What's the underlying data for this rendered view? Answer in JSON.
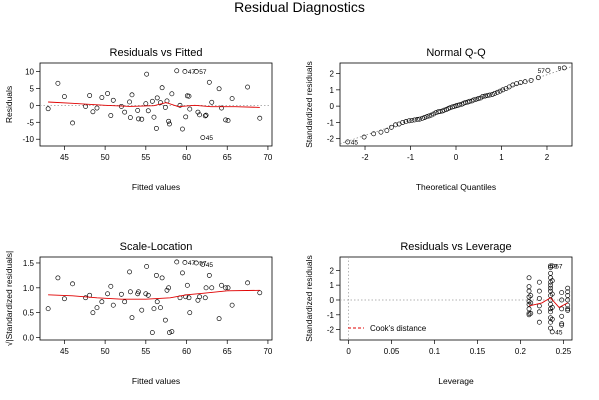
{
  "figure": {
    "title": "Residual Diagnostics"
  },
  "chart_data": [
    {
      "id": "rvf",
      "type": "scatter",
      "title": "Residuals vs Fitted",
      "xlabel": "Fitted values",
      "ylabel": "Residuals",
      "xlim": [
        42,
        70.5
      ],
      "ylim": [
        -12,
        12.5
      ],
      "xticks": [
        45,
        50,
        55,
        60,
        65,
        70
      ],
      "yticks": [
        -10,
        -5,
        0,
        5,
        10
      ],
      "ref_line": {
        "y": 0,
        "style": "dotted"
      },
      "smooth": [
        [
          43,
          1.0
        ],
        [
          46,
          0.6
        ],
        [
          50,
          0.0
        ],
        [
          53,
          -0.3
        ],
        [
          56,
          -0.1
        ],
        [
          57.5,
          0.8
        ],
        [
          59,
          -0.4
        ],
        [
          61,
          0.0
        ],
        [
          63,
          -0.4
        ],
        [
          66,
          -0.4
        ],
        [
          69,
          -0.6
        ]
      ],
      "points": [
        [
          43,
          -1
        ],
        [
          44.2,
          6.5
        ],
        [
          45,
          2.6
        ],
        [
          46,
          -5.2
        ],
        [
          47.6,
          -0.3
        ],
        [
          48.1,
          2.9
        ],
        [
          48.5,
          -1.9
        ],
        [
          49,
          -0.8
        ],
        [
          49.6,
          2.3
        ],
        [
          50.3,
          3.5
        ],
        [
          50.7,
          -3
        ],
        [
          51,
          1.5
        ],
        [
          52,
          -0.3
        ],
        [
          52.4,
          -2
        ],
        [
          53,
          1
        ],
        [
          53.1,
          -3.6
        ],
        [
          53.3,
          3.1
        ],
        [
          54,
          -1.5
        ],
        [
          54.1,
          -4
        ],
        [
          54.5,
          -4.1
        ],
        [
          55,
          0.5
        ],
        [
          55.1,
          9.2
        ],
        [
          55.3,
          -1.6
        ],
        [
          55.8,
          1.2
        ],
        [
          56,
          -3.5
        ],
        [
          56.3,
          -6.8
        ],
        [
          56.4,
          2.2
        ],
        [
          56.8,
          0.8
        ],
        [
          57,
          5.2
        ],
        [
          57.4,
          -0.6
        ],
        [
          57.6,
          1.3
        ],
        [
          57.8,
          -4.7
        ],
        [
          57.9,
          -5.5
        ],
        [
          58.2,
          3.4
        ],
        [
          58.8,
          10.2
        ],
        [
          59.2,
          0
        ],
        [
          59.5,
          -7
        ],
        [
          59.8,
          10
        ],
        [
          59.9,
          -3.4
        ],
        [
          60.1,
          2.8
        ],
        [
          60.3,
          2.7
        ],
        [
          60.4,
          -1.1
        ],
        [
          61.2,
          10
        ],
        [
          61.4,
          -2
        ],
        [
          61.6,
          -2.8
        ],
        [
          62,
          -9.5
        ],
        [
          62.3,
          -3.1
        ],
        [
          62.4,
          -2.9
        ],
        [
          62.8,
          6.8
        ],
        [
          63.1,
          0.9
        ],
        [
          64,
          4.9
        ],
        [
          64.3,
          -0.8
        ],
        [
          64.8,
          -4.3
        ],
        [
          65.1,
          -4.5
        ],
        [
          65.6,
          2
        ],
        [
          67.5,
          5.4
        ],
        [
          69,
          -3.8
        ]
      ],
      "labels": [
        {
          "text": "47",
          "x": 59.8,
          "y": 10
        },
        {
          "text": "57",
          "x": 61.2,
          "y": 10
        },
        {
          "text": "45",
          "x": 62,
          "y": -9.5
        }
      ]
    },
    {
      "id": "qq",
      "type": "scatter",
      "title": "Normal Q-Q",
      "xlabel": "Theoretical Quantiles",
      "ylabel": "Standardized residuals",
      "xlim": [
        -2.55,
        2.55
      ],
      "ylim": [
        -2.45,
        2.65
      ],
      "xticks": [
        -2,
        -1,
        0,
        1,
        2
      ],
      "yticks": [
        -2,
        -1,
        0,
        1,
        2
      ],
      "ref_line": {
        "from": [
          -2.55,
          -2.31
        ],
        "to": [
          2.55,
          2.44
        ],
        "style": "dotted"
      },
      "points": [
        [
          -2.38,
          -2.2
        ],
        [
          -2.02,
          -1.9
        ],
        [
          -1.81,
          -1.7
        ],
        [
          -1.65,
          -1.6
        ],
        [
          -1.52,
          -1.5
        ],
        [
          -1.42,
          -1.3
        ],
        [
          -1.33,
          -1.15
        ],
        [
          -1.25,
          -1.1
        ],
        [
          -1.17,
          -1.0
        ],
        [
          -1.1,
          -0.95
        ],
        [
          -1.03,
          -0.9
        ],
        [
          -0.97,
          -0.88
        ],
        [
          -0.91,
          -0.85
        ],
        [
          -0.85,
          -0.82
        ],
        [
          -0.8,
          -0.8
        ],
        [
          -0.74,
          -0.75
        ],
        [
          -0.69,
          -0.7
        ],
        [
          -0.64,
          -0.65
        ],
        [
          -0.59,
          -0.6
        ],
        [
          -0.54,
          -0.55
        ],
        [
          -0.49,
          -0.48
        ],
        [
          -0.44,
          -0.4
        ],
        [
          -0.39,
          -0.35
        ],
        [
          -0.35,
          -0.33
        ],
        [
          -0.3,
          -0.3
        ],
        [
          -0.26,
          -0.25
        ],
        [
          -0.21,
          -0.2
        ],
        [
          -0.17,
          -0.15
        ],
        [
          -0.13,
          -0.1
        ],
        [
          -0.08,
          -0.05
        ],
        [
          -0.04,
          -0.02
        ],
        [
          0,
          0.02
        ],
        [
          0.04,
          0.05
        ],
        [
          0.08,
          0.08
        ],
        [
          0.13,
          0.12
        ],
        [
          0.17,
          0.18
        ],
        [
          0.21,
          0.22
        ],
        [
          0.26,
          0.25
        ],
        [
          0.3,
          0.3
        ],
        [
          0.35,
          0.32
        ],
        [
          0.39,
          0.38
        ],
        [
          0.44,
          0.42
        ],
        [
          0.49,
          0.46
        ],
        [
          0.54,
          0.5
        ],
        [
          0.59,
          0.6
        ],
        [
          0.64,
          0.62
        ],
        [
          0.69,
          0.65
        ],
        [
          0.74,
          0.68
        ],
        [
          0.8,
          0.72
        ],
        [
          0.85,
          0.78
        ],
        [
          0.91,
          0.85
        ],
        [
          0.97,
          0.92
        ],
        [
          1.03,
          1.0
        ],
        [
          1.1,
          1.08
        ],
        [
          1.17,
          1.18
        ],
        [
          1.25,
          1.3
        ],
        [
          1.33,
          1.38
        ],
        [
          1.42,
          1.45
        ],
        [
          1.52,
          1.5
        ],
        [
          1.65,
          1.58
        ],
        [
          1.81,
          1.75
        ],
        [
          2.02,
          2.2
        ],
        [
          2.38,
          2.35
        ]
      ],
      "labels": [
        {
          "text": "45",
          "x": -2.38,
          "y": -2.2,
          "side": "right"
        },
        {
          "text": "57",
          "x": 2.02,
          "y": 2.2,
          "side": "left"
        },
        {
          "text": "9",
          "x": 2.38,
          "y": 2.35,
          "side": "left"
        }
      ]
    },
    {
      "id": "sl",
      "type": "scatter",
      "title": "Scale-Location",
      "xlabel": "Fitted values",
      "ylabel": "√|Standardized residuals|",
      "xlim": [
        42,
        70.5
      ],
      "ylim": [
        -0.05,
        1.62
      ],
      "xticks": [
        45,
        50,
        55,
        60,
        65,
        70
      ],
      "yticks": [
        0.0,
        0.5,
        1.0,
        1.5
      ],
      "smooth": [
        [
          43,
          0.86
        ],
        [
          46,
          0.84
        ],
        [
          49,
          0.8
        ],
        [
          52,
          0.77
        ],
        [
          55,
          0.77
        ],
        [
          58,
          0.8
        ],
        [
          60,
          0.86
        ],
        [
          62,
          0.89
        ],
        [
          65,
          0.94
        ],
        [
          69,
          0.95
        ]
      ],
      "points": [
        [
          43,
          0.58
        ],
        [
          44.2,
          1.2
        ],
        [
          45,
          0.78
        ],
        [
          46,
          1.08
        ],
        [
          47.6,
          0.8
        ],
        [
          48.1,
          0.85
        ],
        [
          48.5,
          0.5
        ],
        [
          49,
          0.6
        ],
        [
          49.6,
          0.72
        ],
        [
          50.3,
          0.88
        ],
        [
          50.7,
          1.03
        ],
        [
          51,
          0.65
        ],
        [
          52,
          0.87
        ],
        [
          52.4,
          0.72
        ],
        [
          53,
          1.32
        ],
        [
          53.1,
          0.92
        ],
        [
          53.3,
          0.4
        ],
        [
          54,
          0.88
        ],
        [
          54.1,
          0.92
        ],
        [
          54.5,
          0.55
        ],
        [
          55,
          0.88
        ],
        [
          55.1,
          1.43
        ],
        [
          55.3,
          0.85
        ],
        [
          55.8,
          0.1
        ],
        [
          56,
          0.58
        ],
        [
          56.3,
          1.25
        ],
        [
          56.4,
          0.72
        ],
        [
          56.8,
          0.6
        ],
        [
          57,
          1.2
        ],
        [
          57.4,
          0.35
        ],
        [
          57.6,
          0.95
        ],
        [
          57.8,
          1.0
        ],
        [
          57.9,
          0.1
        ],
        [
          58.2,
          0.12
        ],
        [
          58.8,
          1.52
        ],
        [
          59.2,
          0.8
        ],
        [
          59.5,
          1.3
        ],
        [
          59.8,
          1.51
        ],
        [
          59.9,
          0.82
        ],
        [
          60.1,
          1.05
        ],
        [
          60.3,
          0.8
        ],
        [
          60.4,
          0.5
        ],
        [
          61.2,
          1.5
        ],
        [
          61.4,
          0.75
        ],
        [
          61.6,
          0.82
        ],
        [
          62,
          1.47
        ],
        [
          62.3,
          0.8
        ],
        [
          62.4,
          1.0
        ],
        [
          62.8,
          1.25
        ],
        [
          63.1,
          1.0
        ],
        [
          64,
          0.38
        ],
        [
          64.3,
          1.05
        ],
        [
          64.8,
          1.0
        ],
        [
          65.1,
          1.0
        ],
        [
          65.6,
          0.65
        ],
        [
          67.5,
          1.1
        ],
        [
          69,
          0.9
        ]
      ],
      "labels": [
        {
          "text": "47",
          "x": 59.8,
          "y": 1.51
        },
        {
          "text": "57",
          "x": 61.2,
          "y": 1.5
        },
        {
          "text": "45",
          "x": 62,
          "y": 1.47
        }
      ]
    },
    {
      "id": "rvl",
      "type": "scatter",
      "title": "Residuals vs Leverage",
      "xlabel": "Leverage",
      "ylabel": "Standardized residuals",
      "xlim": [
        -0.01,
        0.26
      ],
      "ylim": [
        -2.7,
        2.9
      ],
      "xticks": [
        0.0,
        0.05,
        0.1,
        0.15,
        0.2,
        0.25
      ],
      "yticks": [
        -2,
        -1,
        0,
        1,
        2
      ],
      "ref_line": {
        "y": 0,
        "x": 0,
        "style": "dotted"
      },
      "legend": {
        "text": "Cook's distance",
        "position": "bottom-left"
      },
      "smooth": [
        [
          0.21,
          -0.4
        ],
        [
          0.225,
          -0.2
        ],
        [
          0.235,
          0.15
        ],
        [
          0.245,
          -0.5
        ],
        [
          0.255,
          -0.2
        ]
      ],
      "points": [
        [
          0.21,
          1.5
        ],
        [
          0.21,
          0.9
        ],
        [
          0.21,
          0.6
        ],
        [
          0.21,
          0.2
        ],
        [
          0.21,
          -0.1
        ],
        [
          0.21,
          -0.3
        ],
        [
          0.21,
          -0.6
        ],
        [
          0.21,
          -0.9
        ],
        [
          0.21,
          -1.0
        ],
        [
          0.212,
          0.3
        ],
        [
          0.212,
          -0.2
        ],
        [
          0.212,
          -0.9
        ],
        [
          0.222,
          1.2
        ],
        [
          0.222,
          0.6
        ],
        [
          0.222,
          0.1
        ],
        [
          0.222,
          -0.4
        ],
        [
          0.222,
          -0.8
        ],
        [
          0.222,
          -1.5
        ],
        [
          0.235,
          2.3
        ],
        [
          0.235,
          2.2
        ],
        [
          0.235,
          1.8
        ],
        [
          0.235,
          1.5
        ],
        [
          0.235,
          1.2
        ],
        [
          0.235,
          1.0
        ],
        [
          0.235,
          0.8
        ],
        [
          0.235,
          0.6
        ],
        [
          0.235,
          0.3
        ],
        [
          0.235,
          0.0
        ],
        [
          0.235,
          -0.3
        ],
        [
          0.235,
          -0.6
        ],
        [
          0.235,
          -0.8
        ],
        [
          0.235,
          -1.2
        ],
        [
          0.235,
          -1.5
        ],
        [
          0.235,
          -1.9
        ],
        [
          0.237,
          2.3
        ],
        [
          0.237,
          1.3
        ],
        [
          0.237,
          0.4
        ],
        [
          0.237,
          -0.5
        ],
        [
          0.237,
          -1.3
        ],
        [
          0.237,
          -2.15
        ],
        [
          0.248,
          0.5
        ],
        [
          0.248,
          0.0
        ],
        [
          0.248,
          -0.6
        ],
        [
          0.248,
          -1.1
        ],
        [
          0.248,
          -1.6
        ],
        [
          0.248,
          -1.7
        ],
        [
          0.255,
          0.8
        ],
        [
          0.255,
          0.55
        ],
        [
          0.255,
          0.3
        ],
        [
          0.255,
          0.0
        ],
        [
          0.255,
          -0.35
        ],
        [
          0.255,
          -0.6
        ],
        [
          0.255,
          -0.7
        ]
      ],
      "labels": [
        {
          "text": "9",
          "x": 0.235,
          "y": 2.3
        },
        {
          "text": "57",
          "x": 0.237,
          "y": 2.3,
          "side": "right"
        },
        {
          "text": "45",
          "x": 0.237,
          "y": -2.15,
          "side": "right"
        }
      ]
    }
  ]
}
